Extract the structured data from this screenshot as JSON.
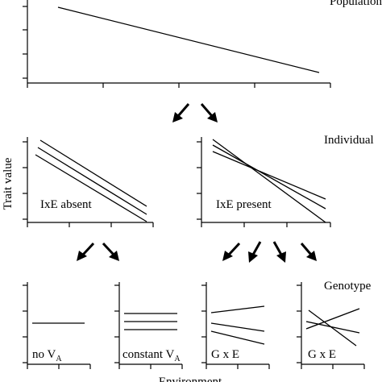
{
  "levels": {
    "population": "Population",
    "individual": "Individual",
    "genotype": "Genotype"
  },
  "axes": {
    "y_label": "Trait value",
    "x_label": "Environment"
  },
  "panels": {
    "ixe_absent": "IxE absent",
    "ixe_present": "IxE present",
    "no_va": "no V",
    "no_va_sub": "A",
    "constant_va": "constant V",
    "constant_va_sub": "A",
    "gxe_1": "G x E",
    "gxe_2": "G x E"
  }
}
